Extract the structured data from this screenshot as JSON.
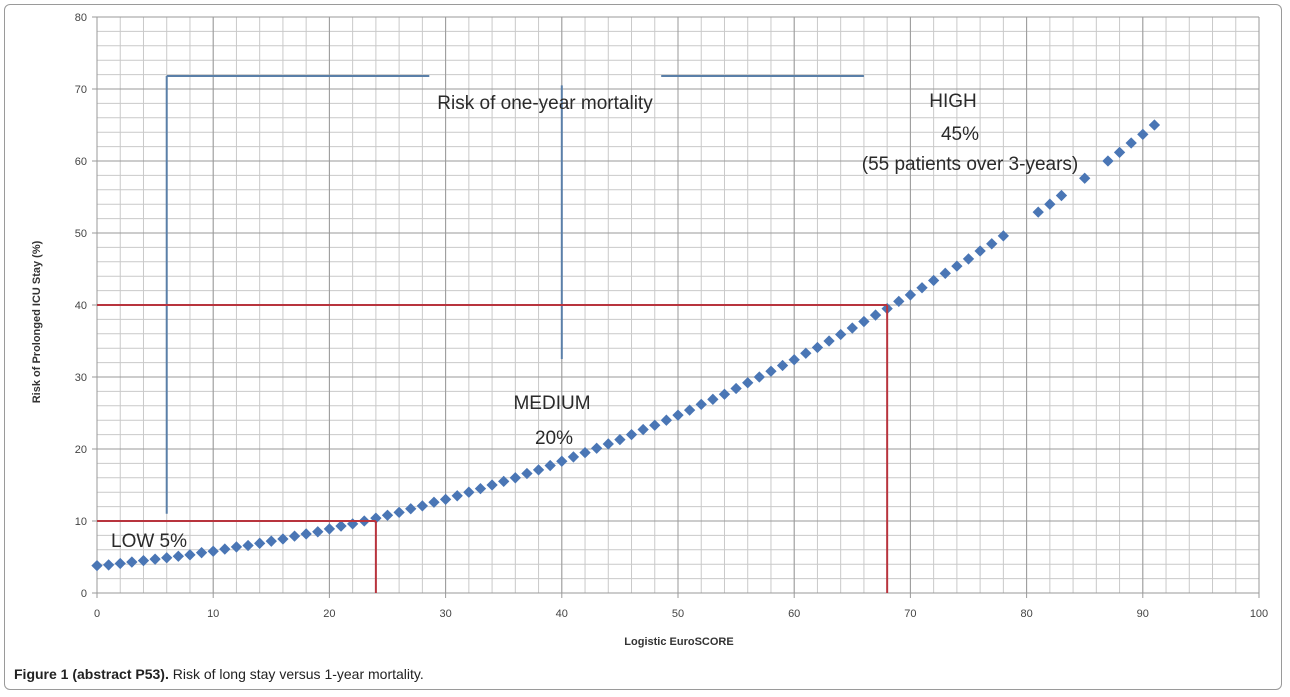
{
  "caption": {
    "label": "Figure 1 (abstract P53).",
    "text": "Risk of long stay versus 1-year mortality."
  },
  "chart_data": {
    "type": "scatter",
    "xlabel": "Logistic EuroSCORE",
    "ylabel": "Risk of Prolonged ICU Stay (%)",
    "xlim": [
      0,
      100
    ],
    "ylim": [
      0,
      80
    ],
    "xticks": [
      0,
      10,
      20,
      30,
      40,
      50,
      60,
      70,
      80,
      90,
      100
    ],
    "yticks": [
      0,
      10,
      20,
      30,
      40,
      50,
      60,
      70,
      80
    ],
    "grid": true,
    "point_color": "#4a76b5",
    "series": [
      {
        "x": [
          0,
          1,
          2,
          3,
          4,
          5,
          6,
          7,
          8,
          9,
          10,
          11,
          12,
          13,
          14,
          15,
          16,
          17,
          18,
          19,
          20,
          21,
          22,
          23,
          24,
          25,
          26,
          27,
          28,
          29,
          30,
          31,
          32,
          33,
          34,
          35,
          36,
          37,
          38,
          39,
          40,
          41,
          42,
          43,
          44,
          45,
          46,
          47,
          48,
          49,
          50,
          51,
          52,
          53,
          54,
          55,
          56,
          57,
          58,
          59,
          60,
          61,
          62,
          63,
          64,
          65,
          66,
          67,
          68,
          69,
          70,
          71,
          72,
          73,
          74,
          75,
          76,
          77,
          78,
          81,
          82,
          83,
          85,
          87,
          88,
          89,
          90,
          91
        ],
        "y": [
          3.8,
          3.9,
          4.1,
          4.3,
          4.5,
          4.7,
          4.9,
          5.1,
          5.3,
          5.6,
          5.8,
          6.1,
          6.4,
          6.6,
          6.9,
          7.2,
          7.5,
          7.9,
          8.2,
          8.5,
          8.9,
          9.3,
          9.6,
          10.0,
          10.4,
          10.8,
          11.2,
          11.7,
          12.1,
          12.6,
          13.0,
          13.5,
          14.0,
          14.5,
          15.0,
          15.5,
          16.0,
          16.6,
          17.1,
          17.7,
          18.3,
          18.9,
          19.5,
          20.1,
          20.7,
          21.3,
          22.0,
          22.7,
          23.3,
          24.0,
          24.7,
          25.4,
          26.2,
          26.9,
          27.6,
          28.4,
          29.2,
          30.0,
          30.8,
          31.6,
          32.4,
          33.3,
          34.1,
          35.0,
          35.9,
          36.8,
          37.7,
          38.6,
          39.5,
          40.5,
          41.4,
          42.4,
          43.4,
          44.4,
          45.4,
          46.4,
          47.5,
          48.5,
          49.6,
          52.9,
          54.0,
          55.2,
          57.6,
          60.0,
          61.2,
          62.5,
          63.7,
          65.0
        ]
      }
    ],
    "annotations": {
      "title_label": "Risk of one-year mortality",
      "low_label": "LOW 5%",
      "medium_label_1": "MEDIUM",
      "medium_label_2": "20%",
      "high_label_1": "HIGH",
      "high_label_2": "45%",
      "high_label_3": "(55 patients over 3-years)"
    },
    "thresholds": [
      {
        "x": 24,
        "y": 10
      },
      {
        "x": 68,
        "y": 40
      }
    ],
    "threshold_color": "#b8343d",
    "bracket_color": "#5a7fa8"
  }
}
